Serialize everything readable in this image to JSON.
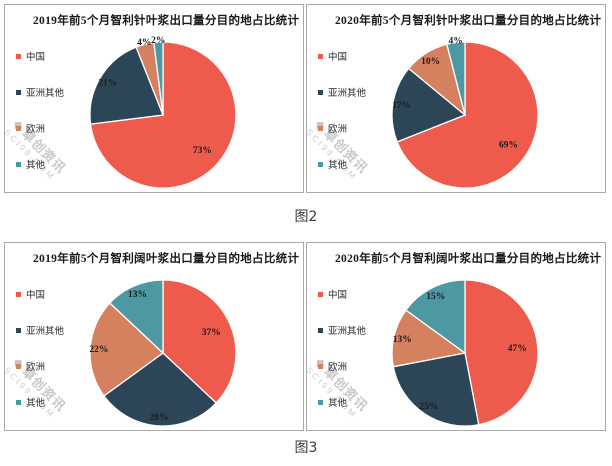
{
  "captions": {
    "fig2": "图2",
    "fig3": "图3"
  },
  "watermark": {
    "logo_icon": "❖",
    "text": "卓创资讯",
    "subtext": "SCI99.COM"
  },
  "palette": {
    "china": "#EE5A4C",
    "asia_other": "#2C4657",
    "europe": "#D5805F",
    "other": "#4C98A3",
    "panel_border": "#A9A9A9",
    "slice_label": "#1C1C1C",
    "watermark_gray": "#C8C8C8"
  },
  "chart_data": [
    {
      "type": "pie",
      "title": "2019年前5个月智利针叶浆出口量分目的地占比统计",
      "categories": [
        "中国",
        "亚洲其他",
        "欧洲",
        "其他"
      ],
      "values": [
        73,
        21,
        4,
        2
      ],
      "data_labels": [
        "73%",
        "21%",
        "4%",
        "2%"
      ],
      "colors": [
        "#EE5A4C",
        "#2C4657",
        "#D5805F",
        "#4C98A3"
      ],
      "unit": "percent",
      "legend_position": "left",
      "start_angle": 0,
      "direction": "clockwise"
    },
    {
      "type": "pie",
      "title": "2020年前5个月智利针叶浆出口量分目的地占比统计",
      "categories": [
        "中国",
        "亚洲其他",
        "欧洲",
        "其他"
      ],
      "values": [
        69,
        17,
        10,
        4
      ],
      "data_labels": [
        "69%",
        "17%",
        "10%",
        "4%"
      ],
      "colors": [
        "#EE5A4C",
        "#2C4657",
        "#D5805F",
        "#4C98A3"
      ],
      "unit": "percent",
      "legend_position": "left",
      "start_angle": 0,
      "direction": "clockwise"
    },
    {
      "type": "pie",
      "title": "2019年前5个月智利阔叶浆出口量分目的地占比统计",
      "categories": [
        "中国",
        "亚洲其他",
        "欧洲",
        "其他"
      ],
      "values": [
        37,
        28,
        22,
        13
      ],
      "data_labels": [
        "37%",
        "28%",
        "22%",
        "13%"
      ],
      "colors": [
        "#EE5A4C",
        "#2C4657",
        "#D5805F",
        "#4C98A3"
      ],
      "unit": "percent",
      "legend_position": "left",
      "start_angle": 0,
      "direction": "clockwise"
    },
    {
      "type": "pie",
      "title": "2020年前5个月智利阔叶浆出口量分目的地占比统计",
      "categories": [
        "中国",
        "亚洲其他",
        "欧洲",
        "其他"
      ],
      "values": [
        47,
        25,
        13,
        15
      ],
      "data_labels": [
        "47%",
        "25%",
        "13%",
        "15%"
      ],
      "colors": [
        "#EE5A4C",
        "#2C4657",
        "#D5805F",
        "#4C98A3"
      ],
      "unit": "percent",
      "legend_position": "left",
      "start_angle": 0,
      "direction": "clockwise"
    }
  ]
}
